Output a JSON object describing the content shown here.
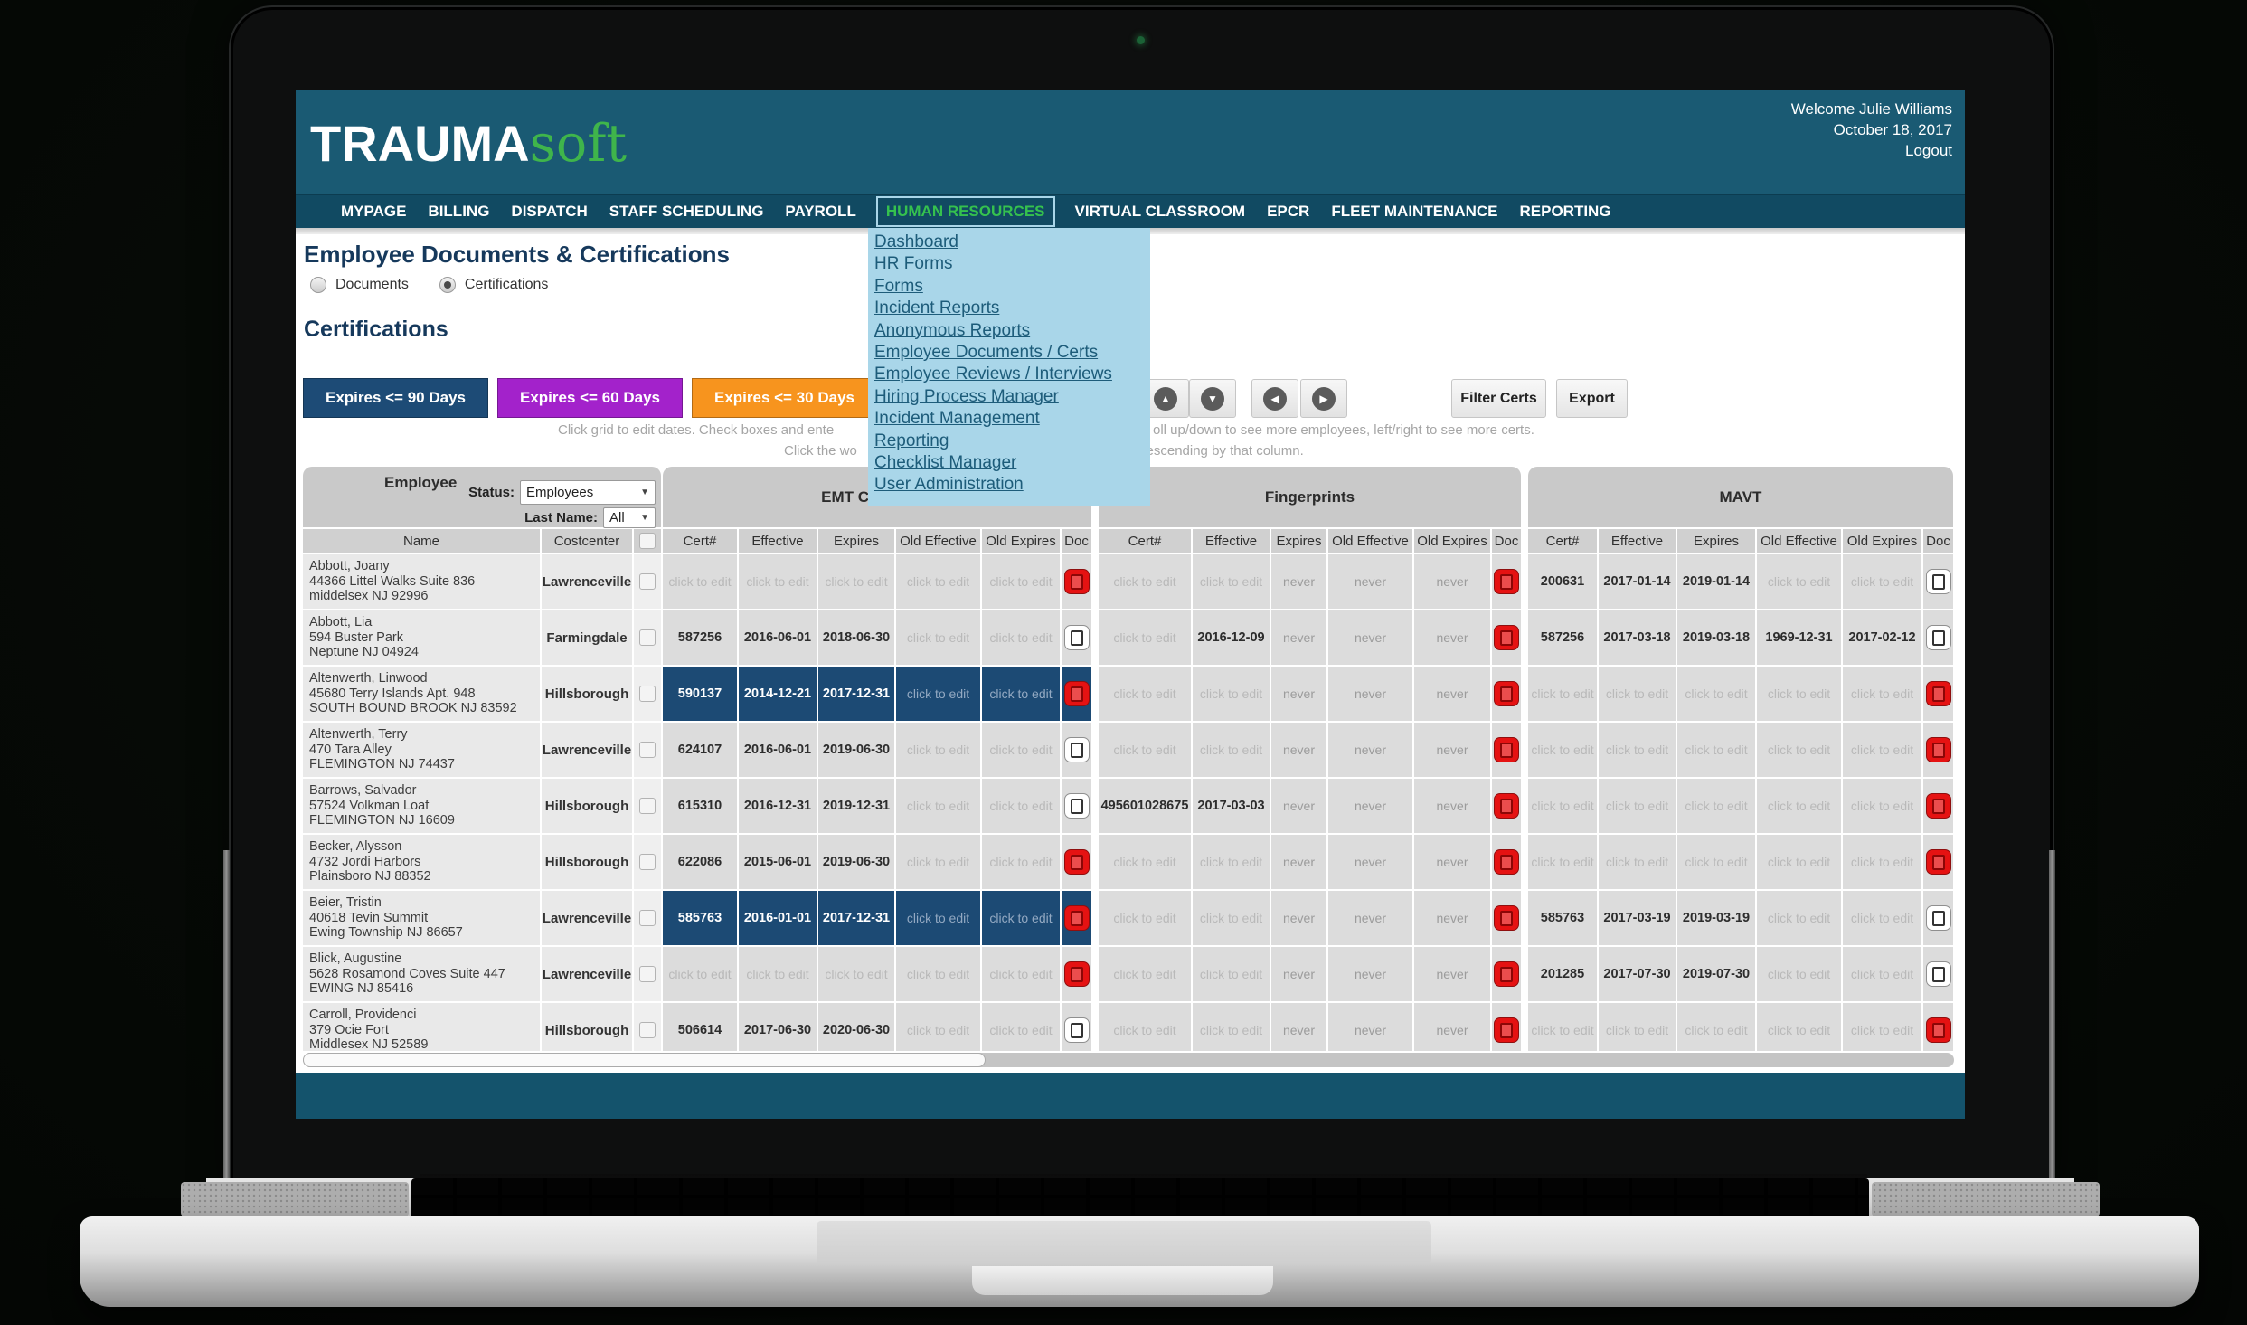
{
  "header": {
    "logo_primary": "TRAUMA",
    "logo_secondary": "soft",
    "welcome": "Welcome Julie Williams",
    "date": "October 18, 2017",
    "logout": "Logout"
  },
  "nav": {
    "items": [
      "MYPAGE",
      "BILLING",
      "DISPATCH",
      "STAFF SCHEDULING",
      "PAYROLL",
      "HUMAN RESOURCES",
      "VIRTUAL CLASSROOM",
      "EPCR",
      "FLEET MAINTENANCE",
      "REPORTING"
    ],
    "active": "HUMAN RESOURCES"
  },
  "hr_menu": {
    "items": [
      "Dashboard",
      "HR Forms",
      "Forms",
      "Incident Reports",
      "Anonymous Reports",
      "Employee Documents / Certs",
      "Employee Reviews / Interviews",
      "Hiring Process Manager",
      "Incident Management",
      "Reporting",
      "Checklist Manager",
      "User Administration"
    ]
  },
  "page": {
    "title": "Employee Documents & Certifications",
    "radio_documents": "Documents",
    "radio_certifications": "Certifications",
    "section_title": "Certifications"
  },
  "toolbar": {
    "expire_buttons": [
      {
        "label": "Expires <= 90 Days",
        "color": "#1d4b76"
      },
      {
        "label": "Expires <= 60 Days",
        "color": "#a322cb"
      },
      {
        "label": "Expires <= 30 Days",
        "color": "#f7941e"
      }
    ],
    "arrows": [
      {
        "name": "up-arrow",
        "glyph": "▲"
      },
      {
        "name": "down-arrow",
        "glyph": "▼"
      },
      {
        "name": "left-arrow",
        "glyph": "◀"
      },
      {
        "name": "right-arrow",
        "glyph": "▶"
      }
    ],
    "filter_label": "Filter Certs",
    "export_label": "Export",
    "hint1_left": "Click grid to edit dates.   Check boxes and ente",
    "hint1_right": "oll up/down to see more employees, left/right to see more certs.",
    "hint2_left": "Click the wo",
    "hint2_right": "/descending by that column."
  },
  "table": {
    "employee_header": "Employee",
    "status_label": "Status:",
    "status_value": "Employees",
    "lastname_label": "Last Name:",
    "lastname_value": "All",
    "sections": [
      "EMT Certificate",
      "Fingerprints",
      "MAVT"
    ],
    "emp_cols": [
      "Name",
      "Costcenter"
    ],
    "cert_cols": [
      "Cert#",
      "Effective",
      "Expires",
      "Old Effective",
      "Old Expires",
      "Doc"
    ],
    "rows": [
      {
        "name": "Abbott, Joany",
        "addr1": "44366 Littel Walks Suite 836",
        "addr2": "middelsex NJ 92996",
        "costcenter": "Lawrenceville",
        "emt": {
          "cells": [
            "click to edit",
            "click to edit",
            "click to edit",
            "click to edit",
            "click to edit"
          ],
          "doc": "red",
          "highlight": false
        },
        "fp": {
          "cells": [
            "click to edit",
            "click to edit",
            "never",
            "never",
            "never"
          ],
          "doc": "red",
          "highlight": false
        },
        "mavt": {
          "cells": [
            "200631",
            "2017-01-14",
            "2019-01-14",
            "click to edit",
            "click to edit"
          ],
          "doc": "white",
          "highlight": false
        }
      },
      {
        "name": "Abbott, Lia",
        "addr1": "594 Buster Park",
        "addr2": "Neptune NJ 04924",
        "costcenter": "Farmingdale",
        "emt": {
          "cells": [
            "587256",
            "2016-06-01",
            "2018-06-30",
            "click to edit",
            "click to edit"
          ],
          "doc": "white",
          "highlight": false
        },
        "fp": {
          "cells": [
            "click to edit",
            "2016-12-09",
            "never",
            "never",
            "never"
          ],
          "doc": "red",
          "highlight": false
        },
        "mavt": {
          "cells": [
            "587256",
            "2017-03-18",
            "2019-03-18",
            "1969-12-31",
            "2017-02-12"
          ],
          "doc": "white",
          "highlight": false
        }
      },
      {
        "name": "Altenwerth, Linwood",
        "addr1": "45680 Terry Islands Apt. 948",
        "addr2": "SOUTH BOUND BROOK NJ 83592",
        "costcenter": "Hillsborough",
        "emt": {
          "cells": [
            "590137",
            "2014-12-21",
            "2017-12-31",
            "click to edit",
            "click to edit"
          ],
          "doc": "red",
          "highlight": true
        },
        "fp": {
          "cells": [
            "click to edit",
            "click to edit",
            "never",
            "never",
            "never"
          ],
          "doc": "red",
          "highlight": false
        },
        "mavt": {
          "cells": [
            "click to edit",
            "click to edit",
            "click to edit",
            "click to edit",
            "click to edit"
          ],
          "doc": "red",
          "highlight": false
        }
      },
      {
        "name": "Altenwerth, Terry",
        "addr1": "470 Tara Alley",
        "addr2": "FLEMINGTON NJ 74437",
        "costcenter": "Lawrenceville",
        "emt": {
          "cells": [
            "624107",
            "2016-06-01",
            "2019-06-30",
            "click to edit",
            "click to edit"
          ],
          "doc": "white",
          "highlight": false
        },
        "fp": {
          "cells": [
            "click to edit",
            "click to edit",
            "never",
            "never",
            "never"
          ],
          "doc": "red",
          "highlight": false
        },
        "mavt": {
          "cells": [
            "click to edit",
            "click to edit",
            "click to edit",
            "click to edit",
            "click to edit"
          ],
          "doc": "red",
          "highlight": false
        }
      },
      {
        "name": "Barrows, Salvador",
        "addr1": "57524 Volkman Loaf",
        "addr2": "FLEMINGTON NJ 16609",
        "costcenter": "Hillsborough",
        "emt": {
          "cells": [
            "615310",
            "2016-12-31",
            "2019-12-31",
            "click to edit",
            "click to edit"
          ],
          "doc": "white",
          "highlight": false
        },
        "fp": {
          "cells": [
            "495601028675",
            "2017-03-03",
            "never",
            "never",
            "never"
          ],
          "doc": "red",
          "highlight": false
        },
        "mavt": {
          "cells": [
            "click to edit",
            "click to edit",
            "click to edit",
            "click to edit",
            "click to edit"
          ],
          "doc": "red",
          "highlight": false
        }
      },
      {
        "name": "Becker, Alysson",
        "addr1": "4732 Jordi Harbors",
        "addr2": "Plainsboro NJ 88352",
        "costcenter": "Hillsborough",
        "emt": {
          "cells": [
            "622086",
            "2015-06-01",
            "2019-06-30",
            "click to edit",
            "click to edit"
          ],
          "doc": "red",
          "highlight": false
        },
        "fp": {
          "cells": [
            "click to edit",
            "click to edit",
            "never",
            "never",
            "never"
          ],
          "doc": "red",
          "highlight": false
        },
        "mavt": {
          "cells": [
            "click to edit",
            "click to edit",
            "click to edit",
            "click to edit",
            "click to edit"
          ],
          "doc": "red",
          "highlight": false
        }
      },
      {
        "name": "Beier, Tristin",
        "addr1": "40618 Tevin Summit",
        "addr2": "Ewing Township NJ 86657",
        "costcenter": "Lawrenceville",
        "emt": {
          "cells": [
            "585763",
            "2016-01-01",
            "2017-12-31",
            "click to edit",
            "click to edit"
          ],
          "doc": "red",
          "highlight": true
        },
        "fp": {
          "cells": [
            "click to edit",
            "click to edit",
            "never",
            "never",
            "never"
          ],
          "doc": "red",
          "highlight": false
        },
        "mavt": {
          "cells": [
            "585763",
            "2017-03-19",
            "2019-03-19",
            "click to edit",
            "click to edit"
          ],
          "doc": "white",
          "highlight": false
        }
      },
      {
        "name": "Blick, Augustine",
        "addr1": "5628 Rosamond Coves Suite 447",
        "addr2": "EWING NJ 85416",
        "costcenter": "Lawrenceville",
        "emt": {
          "cells": [
            "click to edit",
            "click to edit",
            "click to edit",
            "click to edit",
            "click to edit"
          ],
          "doc": "red",
          "highlight": false
        },
        "fp": {
          "cells": [
            "click to edit",
            "click to edit",
            "never",
            "never",
            "never"
          ],
          "doc": "red",
          "highlight": false
        },
        "mavt": {
          "cells": [
            "201285",
            "2017-07-30",
            "2019-07-30",
            "click to edit",
            "click to edit"
          ],
          "doc": "white",
          "highlight": false
        }
      },
      {
        "name": "Carroll, Providenci",
        "addr1": "379 Ocie Fort",
        "addr2": "Middlesex NJ 52589",
        "costcenter": "Hillsborough",
        "emt": {
          "cells": [
            "506614",
            "2017-06-30",
            "2020-06-30",
            "click to edit",
            "click to edit"
          ],
          "doc": "white",
          "highlight": false
        },
        "fp": {
          "cells": [
            "click to edit",
            "click to edit",
            "never",
            "never",
            "never"
          ],
          "doc": "red",
          "highlight": false
        },
        "mavt": {
          "cells": [
            "click to edit",
            "click to edit",
            "click to edit",
            "click to edit",
            "click to edit"
          ],
          "doc": "red",
          "highlight": false
        }
      }
    ]
  },
  "colors": {
    "header_teal": "#1a5a73",
    "nav_teal": "#114a62",
    "footer_teal": "#14536c",
    "logo_green": "#3fb54b",
    "active_nav_green": "#35c14e",
    "menu_blue_bg": "#a9d6e9",
    "menu_link": "#1d5c7a",
    "highlight_row_blue": "#1c4a74",
    "doc_red": "#e51212"
  }
}
